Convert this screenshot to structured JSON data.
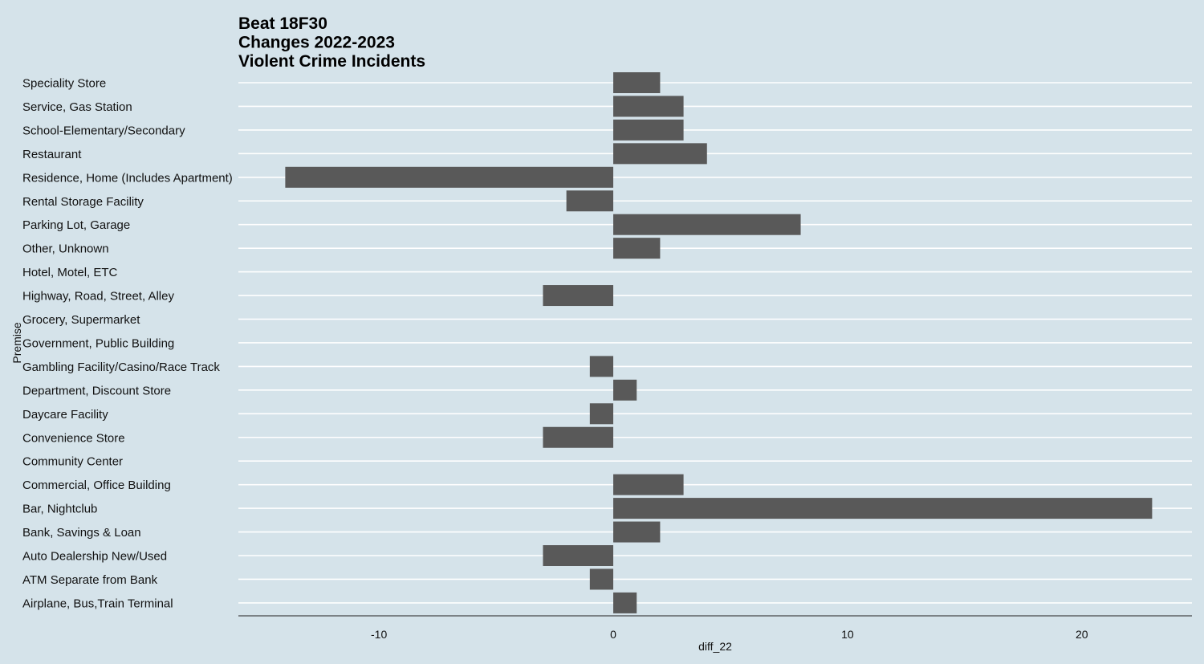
{
  "chart_data": {
    "type": "bar",
    "orientation": "horizontal",
    "title_lines": [
      "Beat 18F30",
      "Changes 2022-2023",
      "Violent Crime Incidents"
    ],
    "xlabel": "diff_22",
    "ylabel": "Premise",
    "xlim": [
      -16,
      24.7
    ],
    "xticks": [
      -10,
      0,
      10,
      20
    ],
    "grid": "horizontal",
    "colors": {
      "background": "#d5e3ea",
      "bar": "#595959",
      "grid": "#ffffff"
    },
    "categories": [
      "Speciality Store",
      "Service, Gas Station",
      "School-Elementary/Secondary",
      "Restaurant",
      "Residence, Home (Includes Apartment)",
      "Rental Storage Facility",
      "Parking Lot, Garage",
      "Other, Unknown",
      "Hotel, Motel, ETC",
      "Highway, Road, Street, Alley",
      "Grocery, Supermarket",
      "Government, Public Building",
      "Gambling Facility/Casino/Race Track",
      "Department, Discount Store",
      "Daycare Facility",
      "Convenience Store",
      "Community Center",
      "Commercial, Office Building",
      "Bar, Nightclub",
      "Bank, Savings & Loan",
      "Auto Dealership New/Used",
      "ATM Separate from Bank",
      "Airplane, Bus,Train Terminal"
    ],
    "values": [
      2,
      3,
      3,
      4,
      -14,
      -2,
      8,
      2,
      0,
      -3,
      0,
      0,
      -1,
      1,
      -1,
      -3,
      0,
      3,
      23,
      2,
      -3,
      -1,
      1
    ]
  }
}
